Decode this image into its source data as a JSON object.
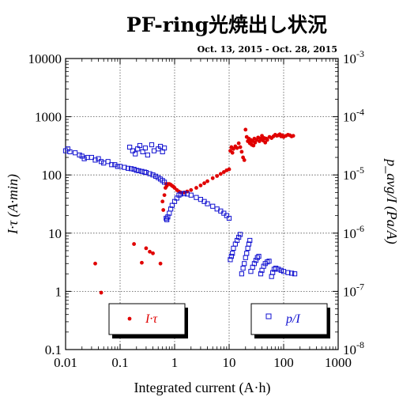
{
  "chart_data": {
    "type": "scatter",
    "title": "PF-ring光焼出し状況",
    "period": "Oct. 13, 2015 - Oct. 28, 2015",
    "xlabel": "Integrated current (A·h)",
    "ylabel_left": "I·τ (A·min)",
    "ylabel_right": "p_avg/I (Pa/A)",
    "xscale": "log",
    "xlim": [
      0.01,
      1000
    ],
    "ylim_left": [
      0.1,
      10000
    ],
    "ylim_right": [
      1e-08,
      0.001
    ],
    "grid": true,
    "x_tick_labels": [
      "0.01",
      "0.1",
      "1",
      "10",
      "100",
      "1000"
    ],
    "y_left_tick_labels": [
      "0.1",
      "1",
      "10",
      "100",
      "1000",
      "10000"
    ],
    "y_right_tick_labels": [
      "10^-8",
      "10^-7",
      "10^-6",
      "10^-5",
      "10^-4",
      "10^-3"
    ],
    "colors": {
      "lifetime": "#e00000",
      "pressure": "#1010d0"
    },
    "series": [
      {
        "name": "I·τ",
        "axis": "left",
        "marker": "filled-circle",
        "points": [
          [
            0.035,
            3.0
          ],
          [
            0.045,
            0.95
          ],
          [
            0.18,
            6.5
          ],
          [
            0.25,
            3.1
          ],
          [
            0.3,
            5.5
          ],
          [
            0.35,
            4.8
          ],
          [
            0.4,
            4.5
          ],
          [
            0.55,
            3.0
          ],
          [
            0.6,
            35
          ],
          [
            0.62,
            25
          ],
          [
            0.65,
            45
          ],
          [
            0.68,
            60
          ],
          [
            0.7,
            70
          ],
          [
            0.72,
            65
          ],
          [
            0.75,
            70
          ],
          [
            0.8,
            70
          ],
          [
            0.85,
            68
          ],
          [
            0.9,
            65
          ],
          [
            0.95,
            63
          ],
          [
            1.0,
            60
          ],
          [
            1.1,
            55
          ],
          [
            1.2,
            52
          ],
          [
            1.3,
            50
          ],
          [
            1.5,
            50
          ],
          [
            1.7,
            52
          ],
          [
            2.0,
            55
          ],
          [
            2.5,
            60
          ],
          [
            3.0,
            66
          ],
          [
            3.5,
            72
          ],
          [
            4.0,
            78
          ],
          [
            5.0,
            88
          ],
          [
            6.0,
            96
          ],
          [
            7.0,
            104
          ],
          [
            8.0,
            112
          ],
          [
            9.0,
            120
          ],
          [
            10.0,
            125
          ],
          [
            10.5,
            260
          ],
          [
            11,
            300
          ],
          [
            11.5,
            240
          ],
          [
            12,
            280
          ],
          [
            13,
            310
          ],
          [
            14,
            290
          ],
          [
            15,
            350
          ],
          [
            16,
            300
          ],
          [
            17,
            250
          ],
          [
            18,
            200
          ],
          [
            19,
            180
          ],
          [
            20,
            600
          ],
          [
            21,
            450
          ],
          [
            22,
            380
          ],
          [
            23,
            420
          ],
          [
            24,
            350
          ],
          [
            25,
            400
          ],
          [
            26,
            330
          ],
          [
            27,
            380
          ],
          [
            28,
            320
          ],
          [
            29,
            420
          ],
          [
            30,
            360
          ],
          [
            32,
            400
          ],
          [
            34,
            440
          ],
          [
            36,
            380
          ],
          [
            38,
            420
          ],
          [
            40,
            470
          ],
          [
            42,
            390
          ],
          [
            44,
            430
          ],
          [
            46,
            360
          ],
          [
            48,
            420
          ],
          [
            50,
            400
          ],
          [
            55,
            450
          ],
          [
            60,
            430
          ],
          [
            65,
            460
          ],
          [
            70,
            490
          ],
          [
            75,
            470
          ],
          [
            80,
            480
          ],
          [
            85,
            500
          ],
          [
            90,
            460
          ],
          [
            95,
            480
          ],
          [
            100,
            450
          ],
          [
            110,
            470
          ],
          [
            120,
            490
          ],
          [
            130,
            480
          ],
          [
            140,
            460
          ],
          [
            150,
            470
          ]
        ]
      },
      {
        "name": "p/I",
        "axis": "right",
        "marker": "open-square",
        "points": [
          [
            0.01,
            2.6e-05
          ],
          [
            0.011,
            2.8e-05
          ],
          [
            0.012,
            2.5e-05
          ],
          [
            0.015,
            2.4e-05
          ],
          [
            0.018,
            2.2e-05
          ],
          [
            0.02,
            2.1e-05
          ],
          [
            0.022,
            1.9e-05
          ],
          [
            0.025,
            2e-05
          ],
          [
            0.03,
            2e-05
          ],
          [
            0.035,
            1.8e-05
          ],
          [
            0.04,
            1.9e-05
          ],
          [
            0.045,
            1.7e-05
          ],
          [
            0.05,
            1.6e-05
          ],
          [
            0.06,
            1.7e-05
          ],
          [
            0.07,
            1.5e-05
          ],
          [
            0.08,
            1.5e-05
          ],
          [
            0.09,
            1.4e-05
          ],
          [
            0.1,
            1.4e-05
          ],
          [
            0.12,
            1.35e-05
          ],
          [
            0.14,
            1.3e-05
          ],
          [
            0.16,
            1.28e-05
          ],
          [
            0.18,
            1.25e-05
          ],
          [
            0.2,
            1.2e-05
          ],
          [
            0.22,
            1.18e-05
          ],
          [
            0.25,
            1.15e-05
          ],
          [
            0.28,
            1.12e-05
          ],
          [
            0.3,
            1.1e-05
          ],
          [
            0.35,
            1.05e-05
          ],
          [
            0.4,
            1e-05
          ],
          [
            0.45,
            9.5e-06
          ],
          [
            0.5,
            9e-06
          ],
          [
            0.55,
            8.5e-06
          ],
          [
            0.6,
            8e-06
          ],
          [
            0.65,
            7.5e-06
          ],
          [
            0.15,
            3e-05
          ],
          [
            0.17,
            2.6e-05
          ],
          [
            0.19,
            2.3e-05
          ],
          [
            0.21,
            2.8e-05
          ],
          [
            0.23,
            3.2e-05
          ],
          [
            0.26,
            2.5e-05
          ],
          [
            0.29,
            2.9e-05
          ],
          [
            0.32,
            2.2e-05
          ],
          [
            0.38,
            3.3e-05
          ],
          [
            0.42,
            2.6e-05
          ],
          [
            0.5,
            2.8e-05
          ],
          [
            0.55,
            3.1e-05
          ],
          [
            0.6,
            2.5e-05
          ],
          [
            0.65,
            2.9e-05
          ],
          [
            0.7,
            1.8e-06
          ],
          [
            0.72,
            1.7e-06
          ],
          [
            0.75,
            1.9e-06
          ],
          [
            0.8,
            2.2e-06
          ],
          [
            0.85,
            2.6e-06
          ],
          [
            0.9,
            3e-06
          ],
          [
            1.0,
            3.5e-06
          ],
          [
            1.1,
            4e-06
          ],
          [
            1.2,
            4.5e-06
          ],
          [
            1.3,
            4.7e-06
          ],
          [
            1.5,
            4.8e-06
          ],
          [
            1.7,
            4.7e-06
          ],
          [
            2.0,
            4.5e-06
          ],
          [
            2.5,
            4.1e-06
          ],
          [
            3.0,
            3.8e-06
          ],
          [
            3.5,
            3.5e-06
          ],
          [
            4.0,
            3.2e-06
          ],
          [
            5.0,
            2.9e-06
          ],
          [
            6.0,
            2.6e-06
          ],
          [
            7.0,
            2.4e-06
          ],
          [
            8.0,
            2.2e-06
          ],
          [
            9.0,
            2e-06
          ],
          [
            10.0,
            1.8e-06
          ],
          [
            10.5,
            3.5e-07
          ],
          [
            11,
            4e-07
          ],
          [
            11.5,
            4.5e-07
          ],
          [
            12,
            5.5e-07
          ],
          [
            13,
            6.5e-07
          ],
          [
            14,
            7.5e-07
          ],
          [
            15,
            8.5e-07
          ],
          [
            16,
            9.5e-07
          ],
          [
            17,
            2e-07
          ],
          [
            18,
            2.5e-07
          ],
          [
            19,
            3e-07
          ],
          [
            20,
            3.8e-07
          ],
          [
            21,
            4.5e-07
          ],
          [
            22,
            5.5e-07
          ],
          [
            23,
            6.5e-07
          ],
          [
            24,
            7.5e-07
          ],
          [
            25,
            2.2e-07
          ],
          [
            27,
            2.6e-07
          ],
          [
            29,
            3e-07
          ],
          [
            31,
            3.4e-07
          ],
          [
            33,
            3.8e-07
          ],
          [
            35,
            4e-07
          ],
          [
            38,
            2e-07
          ],
          [
            40,
            2.3e-07
          ],
          [
            43,
            2.7e-07
          ],
          [
            46,
            3e-07
          ],
          [
            50,
            3.2e-07
          ],
          [
            54,
            3.3e-07
          ],
          [
            60,
            1.8e-07
          ],
          [
            63,
            2.1e-07
          ],
          [
            67,
            2.4e-07
          ],
          [
            72,
            2.5e-07
          ],
          [
            80,
            2.4e-07
          ],
          [
            90,
            2.3e-07
          ],
          [
            100,
            2.2e-07
          ],
          [
            120,
            2.1e-07
          ],
          [
            140,
            2.05e-07
          ],
          [
            160,
            2e-07
          ]
        ]
      }
    ],
    "legend": [
      {
        "label": "I·τ",
        "series": "I·τ",
        "placement": "bottom-center"
      },
      {
        "label": "p/I",
        "series": "p/I",
        "placement": "bottom-right"
      }
    ]
  }
}
